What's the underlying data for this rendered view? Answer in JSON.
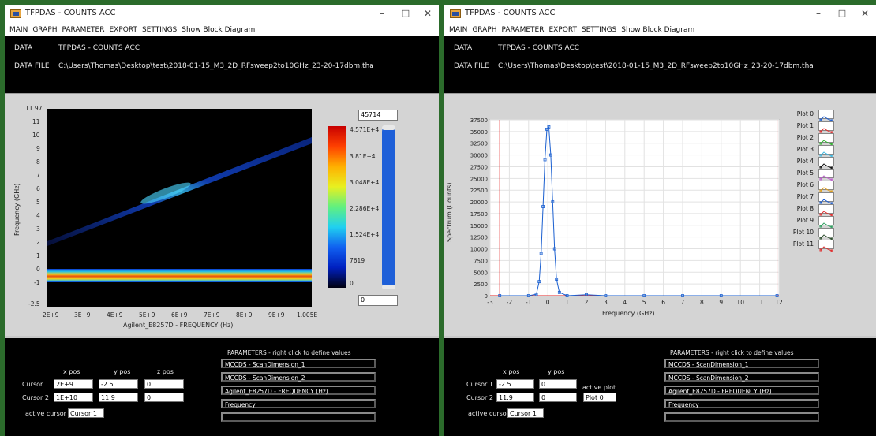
{
  "app": {
    "title": "TFPDAS - COUNTS ACC",
    "menu": [
      "MAIN",
      "GRAPH",
      "PARAMETER",
      "EXPORT",
      "SETTINGS",
      "Show Block Diagram"
    ],
    "data_label": "DATA",
    "data_value": "TFPDAS - COUNTS ACC",
    "datafile_label": "DATA FILE",
    "datafile_value": "C:\\Users\\Thomas\\Desktop\\test\\2018-01-15_M3_2D_RFsweep2to10GHz_23-20-17dbm.tha"
  },
  "colors": {
    "window_border": "#2b6b2b",
    "panel_bg": "#d4d4d4",
    "plot_line": "#1a5fd0",
    "scrollbar_fill": "#1e5fd8",
    "marker_red": "#e02020"
  },
  "left": {
    "heatmap": {
      "ylabel": "Frequency (GHz)",
      "xlabel": "Agilent_E8257D - FREQUENCY (Hz)",
      "y_ticks": [
        "11.97",
        "11",
        "10",
        "9",
        "8",
        "7",
        "6",
        "5",
        "4",
        "3",
        "2",
        "1",
        "0",
        "-1",
        "-2.5"
      ],
      "x_ticks": [
        "2E+9",
        "3E+9",
        "4E+9",
        "5E+9",
        "6E+9",
        "7E+9",
        "8E+9",
        "9E+9",
        "1.005E+"
      ]
    },
    "colorscale": {
      "max_value": "45714",
      "ticks": [
        "4.571E+4",
        "3.81E+4",
        "3.048E+4",
        "2.286E+4",
        "1.524E+4",
        "7619",
        "0"
      ],
      "min_value": "0"
    },
    "cursors": {
      "col_x": "x pos",
      "col_y": "y pos",
      "col_z": "z pos",
      "rows": [
        {
          "label": "Cursor 1",
          "x": "2E+9",
          "y": "-2.5",
          "z": "0"
        },
        {
          "label": "Cursor 2",
          "x": "1E+10",
          "y": "11.9",
          "z": "0"
        }
      ],
      "active_label": "active cursor",
      "active_value": "Cursor 1"
    },
    "parameters": {
      "title": "PARAMETERS - right click to define values",
      "items": [
        "MCCDS - ScanDimension_1",
        "MCCDS - ScanDimension_2",
        "Agilent_E8257D - FREQUENCY (Hz)",
        "Frequency",
        ""
      ]
    }
  },
  "right": {
    "chart_data": {
      "type": "line",
      "xlabel": "Frequency (GHz)",
      "ylabel": "Spectrum (Counts)",
      "xlim": [
        -3,
        12
      ],
      "ylim": [
        0,
        37500
      ],
      "x_ticks": [
        "-3",
        "-2",
        "-1",
        "0",
        "1",
        "2",
        "3",
        "4",
        "5",
        "6",
        "7",
        "8",
        "9",
        "10",
        "11",
        "12"
      ],
      "y_ticks": [
        "37500",
        "35000",
        "32500",
        "30000",
        "27500",
        "25000",
        "22500",
        "20000",
        "17500",
        "15000",
        "12500",
        "10000",
        "7500",
        "5000",
        "2500",
        "0"
      ],
      "grid": true,
      "cursor_lines_x": [
        -2.5,
        11.9
      ],
      "series": [
        {
          "x": [
            -2.5,
            -1.0,
            -0.6,
            -0.45,
            -0.35,
            -0.25,
            -0.15,
            -0.05,
            0.05,
            0.15,
            0.25,
            0.35,
            0.45,
            0.6,
            1.0,
            2.0,
            3.0,
            5.0,
            7.0,
            9.0,
            11.9
          ],
          "y": [
            0,
            0,
            300,
            3000,
            9000,
            19000,
            29000,
            35500,
            36000,
            30000,
            20000,
            10000,
            3500,
            700,
            0,
            200,
            0,
            0,
            0,
            0,
            0
          ]
        }
      ]
    },
    "legend": [
      "Plot 0",
      "Plot 1",
      "Plot 2",
      "Plot 3",
      "Plot 4",
      "Plot 5",
      "Plot 6",
      "Plot 7",
      "Plot 8",
      "Plot 9",
      "Plot 10",
      "Plot 11"
    ],
    "legend_colors": [
      "#2060d0",
      "#e03030",
      "#30b030",
      "#40b8e0",
      "#101010",
      "#c060d0",
      "#e0a020",
      "#2060d0",
      "#e03030",
      "#30a060",
      "#305030",
      "#e03030"
    ],
    "cursors": {
      "col_x": "x pos",
      "col_y": "y pos",
      "rows": [
        {
          "label": "Cursor 1",
          "x": "-2.5",
          "y": "0"
        },
        {
          "label": "Cursor 2",
          "x": "11.9",
          "y": "0"
        }
      ],
      "active_plot_label": "active plot",
      "active_plot_value": "Plot 0",
      "active_label": "active cursor",
      "active_value": "Cursor 1"
    },
    "parameters": {
      "title": "PARAMETERS - right click to define values",
      "items": [
        "MCCDS - ScanDimension_1",
        "MCCDS - ScanDimension_2",
        "Agilent_E8257D - FREQUENCY (Hz)",
        "Frequency",
        ""
      ]
    }
  }
}
